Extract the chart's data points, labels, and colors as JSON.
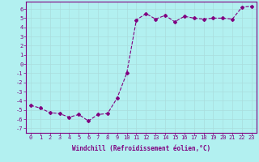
{
  "x": [
    0,
    1,
    2,
    3,
    4,
    5,
    6,
    7,
    8,
    9,
    10,
    11,
    12,
    13,
    14,
    15,
    16,
    17,
    18,
    19,
    20,
    21,
    22,
    23
  ],
  "y": [
    -4.5,
    -4.8,
    -5.3,
    -5.4,
    -5.8,
    -5.5,
    -6.2,
    -5.5,
    -5.4,
    -3.7,
    -1.0,
    4.8,
    5.5,
    4.9,
    5.3,
    4.6,
    5.2,
    5.0,
    4.9,
    5.0,
    5.0,
    4.9,
    6.2,
    6.3
  ],
  "line_color": "#800080",
  "marker": "D",
  "marker_size": 2.0,
  "bg_color": "#b2f0f0",
  "grid_color": "#aadddd",
  "xlabel": "Windchill (Refroidissement éolien,°C)",
  "ylim": [
    -7.5,
    6.8
  ],
  "yticks": [
    -7,
    -6,
    -5,
    -4,
    -3,
    -2,
    -1,
    0,
    1,
    2,
    3,
    4,
    5,
    6
  ],
  "xticks": [
    0,
    1,
    2,
    3,
    4,
    5,
    6,
    7,
    8,
    9,
    10,
    11,
    12,
    13,
    14,
    15,
    16,
    17,
    18,
    19,
    20,
    21,
    22,
    23
  ],
  "xlim": [
    -0.5,
    23.5
  ],
  "axis_color": "#800080",
  "tick_color": "#800080",
  "label_fontsize": 5.5,
  "tick_fontsize": 5.0,
  "linewidth": 0.8
}
